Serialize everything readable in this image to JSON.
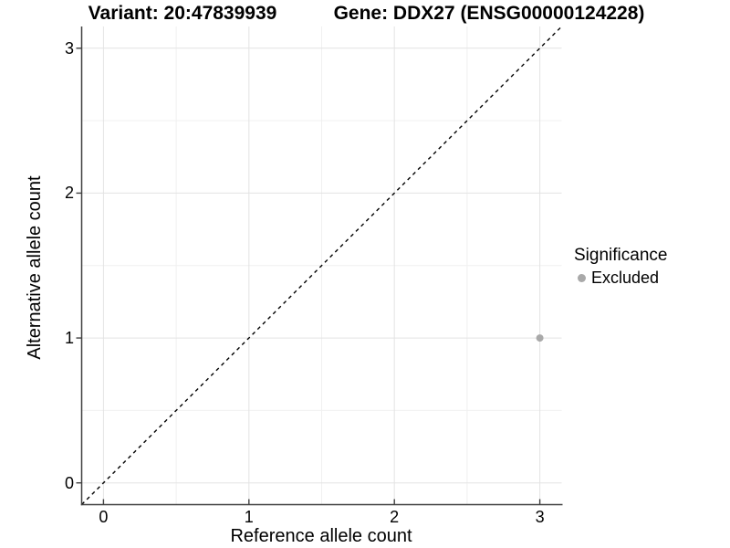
{
  "chart_data": {
    "type": "scatter",
    "title_left": "Variant: 20:47839939",
    "title_right": "Gene: DDX27 (ENSG00000124228)",
    "xlabel": "Reference allele count",
    "ylabel": "Alternative allele count",
    "xticks": [
      0,
      1,
      2,
      3
    ],
    "yticks": [
      0,
      1,
      2,
      3
    ],
    "xlim": [
      -0.15,
      3.15
    ],
    "ylim": [
      -0.15,
      3.15
    ],
    "grid": "major+minor",
    "identity_line": {
      "slope": 1,
      "intercept": 0,
      "style": "dashed",
      "color": "#000000"
    },
    "series": [
      {
        "name": "Excluded",
        "color": "#a9a9a9",
        "points": [
          {
            "x": 3,
            "y": 1
          }
        ]
      }
    ],
    "legend": {
      "title": "Significance",
      "position": "right",
      "items": [
        {
          "label": "Excluded",
          "color": "#a9a9a9",
          "marker": "circle"
        }
      ]
    }
  },
  "colors": {
    "background": "#ffffff",
    "axis_line": "#404040",
    "grid_major": "#e3e3e3",
    "grid_minor": "#f0f0f0",
    "text": "#000000",
    "point": "#a9a9a9"
  }
}
